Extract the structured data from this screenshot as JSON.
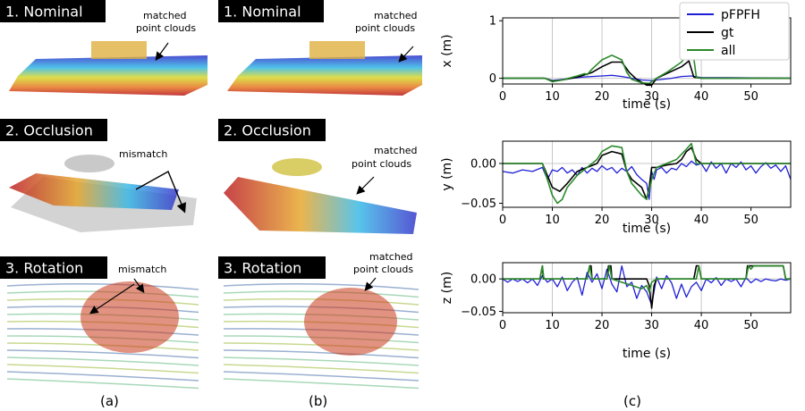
{
  "panels": [
    {
      "id": "a-nominal",
      "title": "1. Nominal",
      "annotation": [
        "matched",
        "point clouds"
      ]
    },
    {
      "id": "b-nominal",
      "title": "1. Nominal",
      "annotation": [
        "matched",
        "point clouds"
      ]
    },
    {
      "id": "a-occlusion",
      "title": "2. Occlusion",
      "annotation": [
        "mismatch"
      ]
    },
    {
      "id": "b-occlusion",
      "title": "2. Occlusion",
      "annotation": [
        "matched",
        "point clouds"
      ]
    },
    {
      "id": "a-rotation",
      "title": "3. Rotation",
      "annotation": [
        "mismatch"
      ]
    },
    {
      "id": "b-rotation",
      "title": "3. Rotation",
      "annotation": [
        "matched",
        "point clouds"
      ]
    }
  ],
  "captions": {
    "a": "(a)",
    "b": "(b)",
    "c": "(c)"
  },
  "colors": {
    "pFPFH": "#1f1fd6",
    "gt": "#000000",
    "all": "#2a8a2a"
  },
  "chart_data": [
    {
      "type": "line",
      "id": "x",
      "ylabel": "x (m)",
      "xlabel": "time (s)",
      "xlim": [
        0,
        58
      ],
      "ylim": [
        -0.1,
        1.05
      ],
      "xticks": [
        0,
        10,
        20,
        30,
        40,
        50
      ],
      "yticks": [
        0,
        1
      ],
      "xgrid": [
        10,
        20,
        30,
        40
      ],
      "legend": {
        "placement": "top-right",
        "entries": [
          "pFPFH",
          "gt",
          "all"
        ]
      },
      "series": [
        {
          "name": "gt",
          "x": [
            0,
            8.5,
            10,
            12,
            15,
            18,
            20,
            22,
            24,
            25.5,
            27,
            29,
            30,
            31,
            33,
            36,
            37.5,
            38.5,
            40,
            58
          ],
          "y": [
            0,
            0,
            -0.05,
            -0.03,
            0.02,
            0.1,
            0.2,
            0.28,
            0.28,
            0.1,
            -0.02,
            -0.12,
            -0.12,
            0,
            0.08,
            0.2,
            0.3,
            0.02,
            0,
            0
          ]
        },
        {
          "name": "all",
          "x": [
            0,
            8.5,
            10,
            12,
            15,
            16.5,
            17,
            18,
            20,
            22,
            24,
            25,
            26,
            28,
            29.5,
            31,
            33,
            36,
            37,
            38.5,
            39,
            40,
            58
          ],
          "y": [
            0,
            0,
            -0.06,
            -0.03,
            0.04,
            0.08,
            0.06,
            0.16,
            0.32,
            0.4,
            0.32,
            0.1,
            -0.02,
            -0.08,
            -0.09,
            0,
            0.1,
            0.28,
            0.4,
            0.35,
            0.02,
            0,
            0
          ]
        },
        {
          "name": "pFPFH",
          "x": [
            0,
            8.5,
            10,
            12,
            14,
            16,
            18,
            20,
            22,
            24,
            26,
            28,
            30,
            32,
            34,
            36,
            38,
            40,
            45,
            50,
            58
          ],
          "y": [
            0,
            0,
            -0.04,
            -0.02,
            0,
            0.02,
            0.03,
            0.04,
            0.05,
            0.03,
            0,
            -0.03,
            -0.04,
            -0.02,
            0,
            0.03,
            0.04,
            0.01,
            0.01,
            0.005,
            0
          ]
        }
      ]
    },
    {
      "type": "line",
      "id": "y",
      "ylabel": "y (m)",
      "xlabel": "time (s)",
      "xlim": [
        0,
        58
      ],
      "ylim": [
        -0.055,
        0.028
      ],
      "xticks": [
        0,
        10,
        20,
        30,
        40,
        50
      ],
      "yticks": [
        0,
        -0.05
      ],
      "ytick_labels": [
        "0.00",
        "−0.05"
      ],
      "xgrid": [
        10,
        20,
        30,
        40
      ],
      "series": [
        {
          "name": "gt",
          "x": [
            0,
            8,
            10,
            11.5,
            13,
            15,
            17,
            19,
            20,
            22,
            24,
            25,
            26,
            28,
            29,
            29.5,
            30,
            31,
            33,
            35,
            36,
            37,
            38,
            39,
            40,
            45,
            50,
            58
          ],
          "y": [
            0,
            0,
            -0.03,
            -0.035,
            -0.025,
            -0.01,
            -0.005,
            0,
            0.01,
            0.015,
            0.012,
            -0.01,
            -0.02,
            -0.03,
            -0.045,
            -0.03,
            -0.005,
            -0.005,
            -0.002,
            0,
            0.005,
            0.015,
            0.02,
            0.005,
            0,
            0,
            0,
            0
          ]
        },
        {
          "name": "all",
          "x": [
            0,
            8,
            10,
            11,
            12,
            13,
            15,
            17,
            19,
            20,
            22,
            24,
            25,
            26,
            28,
            29,
            30,
            31,
            33,
            35,
            37,
            38,
            39,
            40,
            45,
            50,
            58
          ],
          "y": [
            0,
            0,
            -0.04,
            -0.05,
            -0.045,
            -0.03,
            -0.015,
            -0.005,
            0.005,
            0.015,
            0.022,
            0.02,
            -0.01,
            -0.025,
            -0.04,
            -0.045,
            -0.02,
            -0.005,
            0,
            0.005,
            0.018,
            0.025,
            0.0,
            0,
            0,
            0,
            0
          ]
        },
        {
          "name": "pFPFH",
          "x": [
            0,
            2,
            4,
            6,
            8,
            9,
            10,
            11,
            12,
            13,
            14,
            15,
            16,
            17,
            18,
            19,
            20,
            21,
            22,
            23,
            24,
            25,
            26,
            27,
            28,
            29,
            29.5,
            30,
            30.5,
            31,
            32,
            33,
            34,
            35,
            36,
            37,
            38,
            39,
            40,
            41,
            42,
            43,
            44,
            45,
            46,
            47,
            48,
            49,
            50,
            51,
            52,
            53,
            54,
            55,
            56,
            57,
            58
          ],
          "y": [
            -0.01,
            -0.012,
            -0.008,
            -0.01,
            -0.005,
            -0.02,
            -0.008,
            -0.01,
            -0.005,
            -0.012,
            -0.008,
            -0.015,
            -0.005,
            -0.012,
            -0.006,
            -0.01,
            -0.003,
            -0.008,
            -0.005,
            -0.012,
            -0.006,
            -0.01,
            -0.004,
            -0.014,
            -0.02,
            -0.025,
            -0.045,
            -0.01,
            -0.02,
            -0.008,
            -0.005,
            -0.012,
            -0.006,
            -0.008,
            0,
            -0.004,
            0.003,
            -0.002,
            0,
            -0.01,
            0.002,
            -0.006,
            0,
            -0.012,
            0,
            -0.005,
            0.002,
            -0.008,
            -0.003,
            -0.012,
            -0.004,
            0.001,
            -0.006,
            -0.002,
            -0.01,
            -0.003,
            -0.02
          ]
        }
      ]
    },
    {
      "type": "line",
      "id": "z",
      "ylabel": "z (m)",
      "xlabel": "time (s)",
      "xlim": [
        0,
        58
      ],
      "ylim": [
        -0.052,
        0.025
      ],
      "xticks": [
        0,
        10,
        20,
        30,
        40,
        50
      ],
      "yticks": [
        0,
        -0.05
      ],
      "ytick_labels": [
        "0.00",
        "−0.05"
      ],
      "xgrid": [
        10,
        20,
        30,
        40
      ],
      "series": [
        {
          "name": "gt",
          "x": [
            0,
            7.5,
            8,
            8.2,
            9,
            17,
            17.5,
            17.8,
            18,
            20,
            21,
            21.3,
            21.8,
            22,
            29,
            29.5,
            30,
            30.5,
            31,
            38.5,
            39,
            39.5,
            40,
            48,
            49,
            49.3,
            50,
            50.5,
            56.5,
            57,
            58
          ],
          "y": [
            0,
            0,
            0.02,
            0,
            0,
            0,
            0.02,
            0.02,
            0,
            0,
            0,
            0.02,
            0.02,
            0,
            0,
            -0.01,
            -0.045,
            -0.01,
            0,
            0,
            0.02,
            0.02,
            0,
            0,
            0,
            0.02,
            0.02,
            0.02,
            0.02,
            0,
            0
          ]
        },
        {
          "name": "all",
          "x": [
            0,
            7.5,
            8,
            8.3,
            9,
            17,
            17.5,
            18,
            21,
            21.5,
            22,
            26,
            28,
            29,
            29.5,
            30,
            31,
            39,
            39.5,
            40,
            49,
            49.5,
            50,
            50.5,
            56.5,
            57,
            58
          ],
          "y": [
            0,
            0,
            0.02,
            0,
            0,
            0,
            0.02,
            0,
            0,
            0.02,
            0,
            -0.01,
            -0.015,
            -0.01,
            -0.02,
            -0.005,
            0,
            0,
            0.02,
            0,
            0,
            0.02,
            0.015,
            0.02,
            0.02,
            0,
            0
          ]
        },
        {
          "name": "pFPFH",
          "x": [
            0,
            1,
            2,
            3,
            4,
            5,
            6,
            7,
            8,
            9,
            10,
            11,
            12,
            13,
            14,
            15,
            16,
            17,
            18,
            19,
            20,
            21,
            22,
            23,
            24,
            25,
            26,
            27,
            28,
            29,
            30,
            31,
            32,
            33,
            34,
            35,
            36,
            37,
            38,
            39,
            40,
            41,
            42,
            43,
            44,
            45,
            46,
            47,
            48,
            49,
            50,
            51,
            52,
            53,
            54,
            55,
            56,
            57,
            58
          ],
          "y": [
            0,
            -0.005,
            0,
            -0.004,
            0,
            -0.006,
            0,
            -0.01,
            0.005,
            -0.005,
            0,
            -0.012,
            0.003,
            -0.018,
            -0.005,
            0.002,
            -0.025,
            0.01,
            -0.005,
            0.008,
            -0.015,
            0.015,
            -0.008,
            -0.02,
            0.02,
            -0.012,
            -0.005,
            -0.03,
            -0.01,
            -0.02,
            -0.04,
            0.003,
            -0.015,
            0.005,
            -0.006,
            -0.03,
            -0.008,
            -0.028,
            -0.012,
            -0.005,
            -0.018,
            0,
            -0.006,
            0.002,
            -0.01,
            0,
            -0.004,
            0,
            -0.012,
            0.002,
            -0.006,
            0,
            -0.004,
            0,
            -0.002,
            -0.003,
            0,
            -0.002,
            0
          ]
        }
      ]
    }
  ]
}
